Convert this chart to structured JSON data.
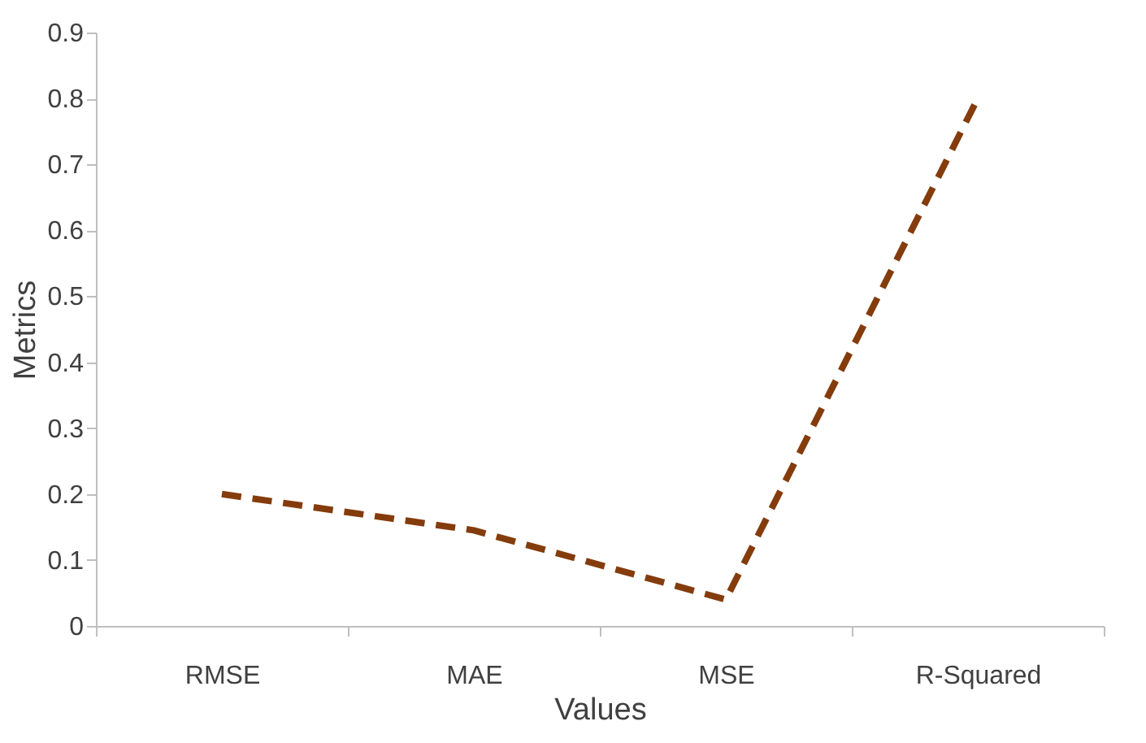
{
  "chart_data": {
    "type": "line",
    "xlabel": "Values",
    "ylabel": "Metrics",
    "categories": [
      "RMSE",
      "MAE",
      "MSE",
      "R-Squared"
    ],
    "series": [
      {
        "color": "#843c0c",
        "values": [
          0.2,
          0.145,
          0.04,
          0.8
        ]
      }
    ],
    "ylim": [
      0,
      0.9
    ],
    "yticks": [
      0,
      0.1,
      0.2,
      0.3,
      0.4,
      0.5,
      0.6,
      0.7,
      0.8,
      0.9
    ],
    "grid": false,
    "marker": "none",
    "line_style": "dashed"
  }
}
